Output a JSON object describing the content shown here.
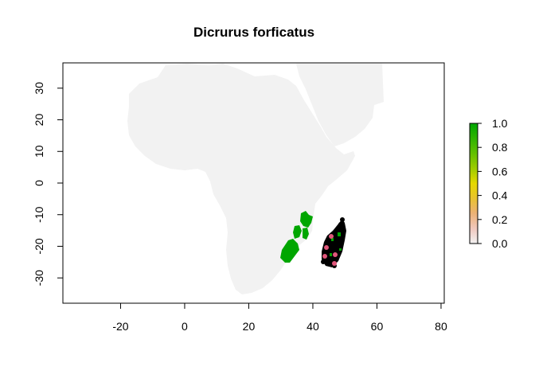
{
  "title": "Dicrurus forficatus",
  "map": {
    "xlim": [
      -38,
      81
    ],
    "ylim": [
      -38,
      38
    ],
    "x_ticks": [
      -20,
      0,
      20,
      40,
      60,
      80
    ],
    "y_ticks": [
      -30,
      -20,
      -10,
      0,
      10,
      20,
      30
    ],
    "x_tick_labels": [
      "-20",
      "0",
      "20",
      "40",
      "60",
      "80"
    ],
    "y_tick_labels": [
      "-30",
      "-20",
      "-10",
      "0",
      "10",
      "20",
      "30"
    ],
    "land_color": "#f2f2f2",
    "suitability_color": "#00a600",
    "occurrence_color": "#000000",
    "highlight_color": "#e0567a"
  },
  "legend": {
    "tick_labels": [
      "1.0",
      "0.8",
      "0.6",
      "0.4",
      "0.2",
      "0.0"
    ],
    "gradient_stops": [
      "#00a600",
      "#2db300",
      "#63c000",
      "#a0cc00",
      "#e6d800",
      "#e8c32e",
      "#ecb176",
      "#f0c9c0",
      "#f2f2f2"
    ]
  }
}
